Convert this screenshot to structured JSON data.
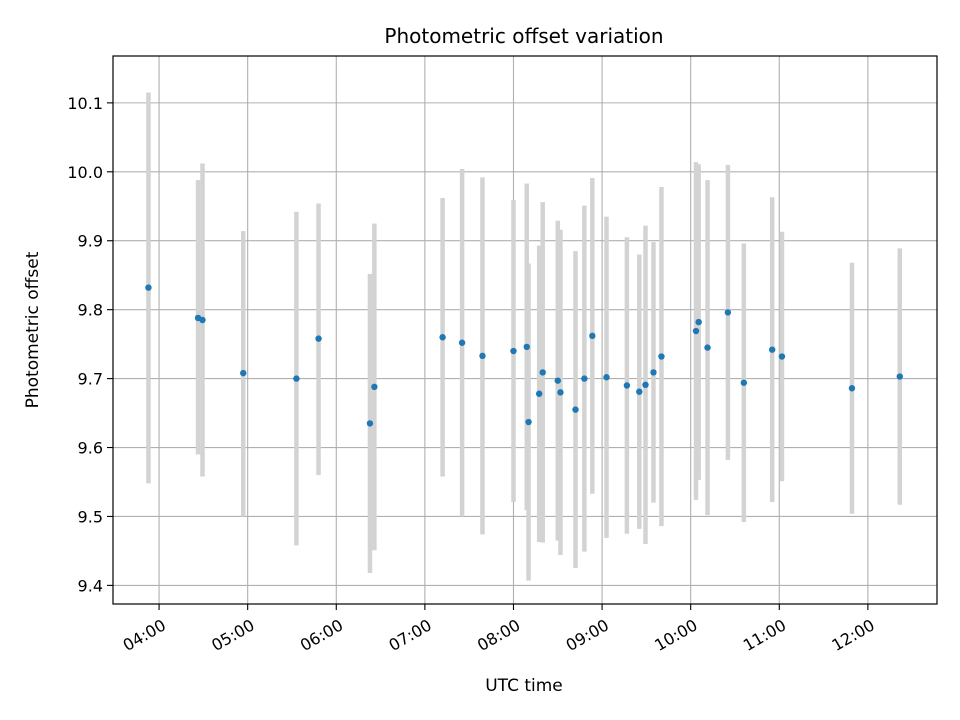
{
  "chart_data": {
    "type": "scatter",
    "title": "Photometric offset variation",
    "xlabel": "UTC time",
    "ylabel": "Photometric offset",
    "grid": true,
    "x_unit": "hours (UTC)",
    "xlim": [
      3.48,
      12.78
    ],
    "ylim": [
      9.373,
      10.168
    ],
    "x_ticks": [
      4,
      5,
      6,
      7,
      8,
      9,
      10,
      11,
      12
    ],
    "x_tick_labels": [
      "04:00",
      "05:00",
      "06:00",
      "07:00",
      "08:00",
      "09:00",
      "10:00",
      "11:00",
      "12:00"
    ],
    "y_ticks": [
      9.4,
      9.5,
      9.6,
      9.7,
      9.8,
      9.9,
      10.0,
      10.1
    ],
    "y_tick_labels": [
      "9.4",
      "9.5",
      "9.6",
      "9.7",
      "9.8",
      "9.9",
      "10.0",
      "10.1"
    ],
    "colors": {
      "marker": "#1f77b4",
      "errorbar": "#d3d3d3",
      "grid": "#b0b0b0"
    },
    "series": [
      {
        "marker": "point",
        "errorbar": "vertical",
        "points": [
          {
            "x": 3.88,
            "y": 9.832,
            "low": 9.548,
            "high": 10.115
          },
          {
            "x": 4.44,
            "y": 9.788,
            "low": 9.59,
            "high": 9.988
          },
          {
            "x": 4.49,
            "y": 9.785,
            "low": 9.558,
            "high": 10.012
          },
          {
            "x": 4.95,
            "y": 9.708,
            "low": 9.5,
            "high": 9.914
          },
          {
            "x": 5.55,
            "y": 9.7,
            "low": 9.458,
            "high": 9.942
          },
          {
            "x": 5.8,
            "y": 9.758,
            "low": 9.56,
            "high": 9.954
          },
          {
            "x": 6.38,
            "y": 9.635,
            "low": 9.418,
            "high": 9.852
          },
          {
            "x": 6.43,
            "y": 9.688,
            "low": 9.451,
            "high": 9.925
          },
          {
            "x": 7.2,
            "y": 9.76,
            "low": 9.558,
            "high": 9.962
          },
          {
            "x": 7.42,
            "y": 9.752,
            "low": 9.5,
            "high": 10.004
          },
          {
            "x": 7.65,
            "y": 9.733,
            "low": 9.474,
            "high": 9.992
          },
          {
            "x": 8.0,
            "y": 9.74,
            "low": 9.521,
            "high": 9.959
          },
          {
            "x": 8.15,
            "y": 9.746,
            "low": 9.509,
            "high": 9.983
          },
          {
            "x": 8.17,
            "y": 9.637,
            "low": 9.407,
            "high": 9.867
          },
          {
            "x": 8.29,
            "y": 9.678,
            "low": 9.463,
            "high": 9.893
          },
          {
            "x": 8.33,
            "y": 9.709,
            "low": 9.462,
            "high": 9.956
          },
          {
            "x": 8.5,
            "y": 9.697,
            "low": 9.465,
            "high": 9.929
          },
          {
            "x": 8.53,
            "y": 9.68,
            "low": 9.444,
            "high": 9.916
          },
          {
            "x": 8.7,
            "y": 9.655,
            "low": 9.425,
            "high": 9.885
          },
          {
            "x": 8.8,
            "y": 9.7,
            "low": 9.449,
            "high": 9.951
          },
          {
            "x": 8.89,
            "y": 9.762,
            "low": 9.533,
            "high": 9.991
          },
          {
            "x": 9.05,
            "y": 9.702,
            "low": 9.469,
            "high": 9.935
          },
          {
            "x": 9.28,
            "y": 9.69,
            "low": 9.475,
            "high": 9.905
          },
          {
            "x": 9.42,
            "y": 9.681,
            "low": 9.482,
            "high": 9.88
          },
          {
            "x": 9.49,
            "y": 9.691,
            "low": 9.46,
            "high": 9.922
          },
          {
            "x": 9.58,
            "y": 9.709,
            "low": 9.52,
            "high": 9.898
          },
          {
            "x": 9.67,
            "y": 9.732,
            "low": 9.486,
            "high": 9.978
          },
          {
            "x": 10.06,
            "y": 9.769,
            "low": 9.524,
            "high": 10.014
          },
          {
            "x": 10.09,
            "y": 9.782,
            "low": 9.553,
            "high": 10.011
          },
          {
            "x": 10.19,
            "y": 9.745,
            "low": 9.502,
            "high": 9.988
          },
          {
            "x": 10.42,
            "y": 9.796,
            "low": 9.582,
            "high": 10.01
          },
          {
            "x": 10.6,
            "y": 9.694,
            "low": 9.492,
            "high": 9.896
          },
          {
            "x": 10.92,
            "y": 9.742,
            "low": 9.521,
            "high": 9.963
          },
          {
            "x": 11.03,
            "y": 9.732,
            "low": 9.551,
            "high": 9.913
          },
          {
            "x": 11.82,
            "y": 9.686,
            "low": 9.504,
            "high": 9.868
          },
          {
            "x": 12.36,
            "y": 9.703,
            "low": 9.517,
            "high": 9.889
          }
        ]
      }
    ]
  }
}
